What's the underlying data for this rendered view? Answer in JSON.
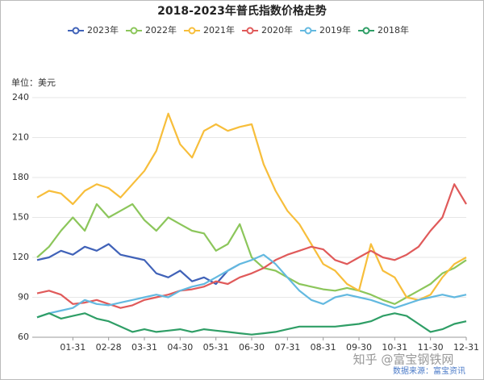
{
  "chart_data": {
    "type": "line",
    "title": "2018-2023年普氏指数价格走势",
    "y_label": "单位：美元",
    "source": "数据来源：富宝资讯",
    "watermark": "知乎 @富宝钢铁网",
    "categories": [
      null,
      null,
      null,
      "01-31",
      null,
      null,
      "02-28",
      null,
      null,
      "03-31",
      null,
      null,
      "04-30",
      null,
      null,
      "05-31",
      null,
      null,
      "06-30",
      null,
      null,
      "07-31",
      null,
      null,
      "08-31",
      null,
      null,
      "09-30",
      null,
      null,
      "10-31",
      null,
      null,
      "11-30",
      null,
      null,
      "12-31"
    ],
    "ylim": [
      60,
      240
    ],
    "yticks": [
      60,
      90,
      120,
      150,
      180,
      210,
      240
    ],
    "grid": true,
    "series": [
      {
        "name": "2023年",
        "color": "#4062b8",
        "values": [
          118,
          120,
          125,
          122,
          128,
          125,
          130,
          122,
          120,
          118,
          108,
          105,
          110,
          102,
          105,
          100,
          110,
          115,
          null,
          null,
          null,
          null,
          null,
          null,
          null,
          null,
          null,
          null,
          null,
          null,
          null,
          null,
          null,
          null,
          null,
          null,
          null
        ]
      },
      {
        "name": "2022年",
        "color": "#8cc65b",
        "values": [
          120,
          128,
          140,
          150,
          140,
          160,
          150,
          155,
          160,
          148,
          140,
          150,
          145,
          140,
          138,
          125,
          130,
          145,
          120,
          112,
          110,
          105,
          100,
          98,
          96,
          95,
          97,
          95,
          92,
          88,
          85,
          90,
          95,
          100,
          108,
          112,
          118
        ]
      },
      {
        "name": "2021年",
        "color": "#f7be3b",
        "values": [
          165,
          170,
          168,
          160,
          170,
          175,
          172,
          165,
          175,
          185,
          200,
          228,
          205,
          195,
          215,
          220,
          215,
          218,
          220,
          190,
          170,
          155,
          145,
          130,
          115,
          110,
          100,
          95,
          130,
          110,
          105,
          90,
          88,
          92,
          105,
          115,
          120
        ]
      },
      {
        "name": "2020年",
        "color": "#e05a5a",
        "values": [
          93,
          95,
          92,
          85,
          86,
          88,
          85,
          82,
          84,
          88,
          90,
          92,
          95,
          96,
          98,
          102,
          100,
          105,
          108,
          112,
          118,
          122,
          125,
          128,
          126,
          118,
          115,
          120,
          125,
          120,
          118,
          122,
          128,
          140,
          150,
          175,
          160
        ]
      },
      {
        "name": "2019年",
        "color": "#63b9e0",
        "values": [
          75,
          78,
          80,
          82,
          88,
          85,
          84,
          86,
          88,
          90,
          92,
          90,
          95,
          98,
          100,
          105,
          110,
          115,
          118,
          122,
          115,
          105,
          95,
          88,
          85,
          90,
          92,
          90,
          88,
          85,
          82,
          85,
          88,
          90,
          92,
          90,
          92
        ]
      },
      {
        "name": "2018年",
        "color": "#2f9e66",
        "values": [
          75,
          78,
          74,
          76,
          78,
          74,
          72,
          68,
          64,
          66,
          64,
          65,
          66,
          64,
          66,
          65,
          64,
          63,
          62,
          63,
          64,
          66,
          68,
          68,
          68,
          68,
          69,
          70,
          72,
          76,
          78,
          76,
          70,
          64,
          66,
          70,
          72
        ]
      }
    ]
  }
}
